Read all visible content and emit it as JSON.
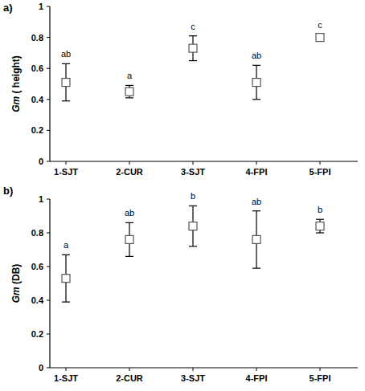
{
  "chart_data": [
    {
      "type": "scatter",
      "title": "a)",
      "y_label": "Gm ( height)",
      "categories": [
        "1-SJT",
        "2-CUR",
        "3-SJT",
        "4-FPI",
        "5-FPI"
      ],
      "values": [
        0.51,
        0.45,
        0.73,
        0.51,
        0.8
      ],
      "errors": [
        0.12,
        0.04,
        0.08,
        0.11,
        0.02
      ],
      "annotations": [
        "ab",
        "a",
        "c",
        "ab",
        "c"
      ],
      "ylim": [
        0,
        1
      ],
      "yticks": [
        0,
        0.2,
        0.4,
        0.6,
        0.8,
        1
      ],
      "marker": "square",
      "color": "#555555",
      "grid": false
    },
    {
      "type": "scatter",
      "title": "b)",
      "y_label": "Gm (DB)",
      "categories": [
        "1-SJT",
        "2-CUR",
        "3-SJT",
        "4-FPI",
        "5-FPI"
      ],
      "values": [
        0.53,
        0.76,
        0.84,
        0.76,
        0.84
      ],
      "errors": [
        0.14,
        0.1,
        0.12,
        0.17,
        0.04
      ],
      "annotations": [
        "a",
        "ab",
        "b",
        "ab",
        "b"
      ],
      "ylim": [
        0,
        1
      ],
      "yticks": [
        0,
        0.2,
        0.4,
        0.6,
        0.8,
        1
      ],
      "marker": "square",
      "color": "#555555",
      "grid": false
    }
  ]
}
